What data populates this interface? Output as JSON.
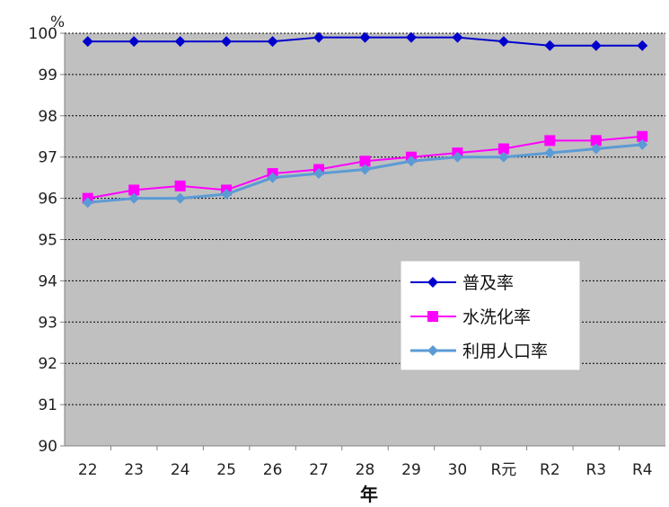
{
  "chart_data": {
    "type": "line",
    "title": "",
    "xlabel": "年",
    "ylabel": "",
    "unit": "%",
    "categories": [
      "22",
      "23",
      "24",
      "25",
      "26",
      "27",
      "28",
      "29",
      "30",
      "R元",
      "R2",
      "R3",
      "R4"
    ],
    "ylim": [
      90,
      100
    ],
    "yticks": [
      90,
      91,
      92,
      93,
      94,
      95,
      96,
      97,
      98,
      99,
      100
    ],
    "grid": true,
    "legend": "right-middle",
    "series": [
      {
        "name": "普及率",
        "color": "#0000cc",
        "marker": "diamond",
        "values": [
          99.8,
          99.8,
          99.8,
          99.8,
          99.8,
          99.9,
          99.9,
          99.9,
          99.9,
          99.8,
          99.7,
          99.7,
          99.7
        ]
      },
      {
        "name": "水洗化率",
        "color": "#ff00ff",
        "marker": "square",
        "values": [
          96.0,
          96.2,
          96.3,
          96.2,
          96.6,
          96.7,
          96.9,
          97.0,
          97.1,
          97.2,
          97.4,
          97.4,
          97.5
        ]
      },
      {
        "name": "利用人口率",
        "color": "#5b9bd5",
        "marker": "diamond",
        "values": [
          95.9,
          96.0,
          96.0,
          96.1,
          96.5,
          96.6,
          96.7,
          96.9,
          97.0,
          97.0,
          97.1,
          97.2,
          97.3
        ]
      }
    ]
  }
}
